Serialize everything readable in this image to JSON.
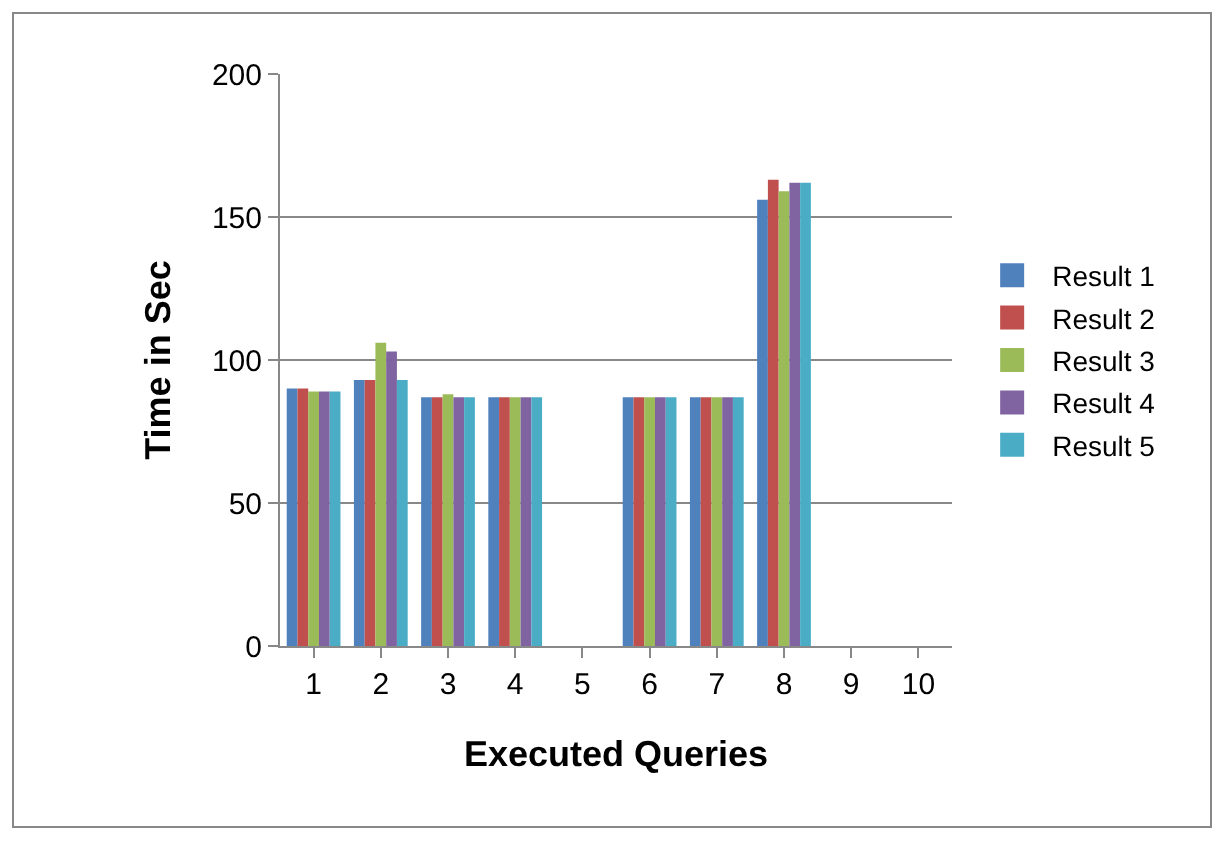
{
  "chart_data": {
    "type": "bar",
    "xlabel": "Executed Queries",
    "ylabel": "Time in Sec",
    "categories": [
      "1",
      "2",
      "3",
      "4",
      "5",
      "6",
      "7",
      "8",
      "9",
      "10"
    ],
    "series": [
      {
        "name": "Result 1",
        "color": "#4f81bd",
        "values": [
          90,
          93,
          87,
          87,
          null,
          87,
          87,
          156,
          null,
          null
        ]
      },
      {
        "name": "Result 2",
        "color": "#c0504d",
        "values": [
          90,
          93,
          87,
          87,
          null,
          87,
          87,
          163,
          null,
          null
        ]
      },
      {
        "name": "Result 3",
        "color": "#9bbb59",
        "values": [
          89,
          106,
          88,
          87,
          null,
          87,
          87,
          159,
          null,
          null
        ]
      },
      {
        "name": "Result 4",
        "color": "#8064a2",
        "values": [
          89,
          103,
          87,
          87,
          null,
          87,
          87,
          162,
          null,
          null
        ]
      },
      {
        "name": "Result 5",
        "color": "#4bacc6",
        "values": [
          89,
          93,
          87,
          87,
          null,
          87,
          87,
          162,
          null,
          null
        ]
      }
    ],
    "ylim": [
      0,
      200
    ],
    "yticks": [
      0,
      50,
      100,
      150,
      200
    ],
    "grid": "y",
    "legend": "right"
  }
}
